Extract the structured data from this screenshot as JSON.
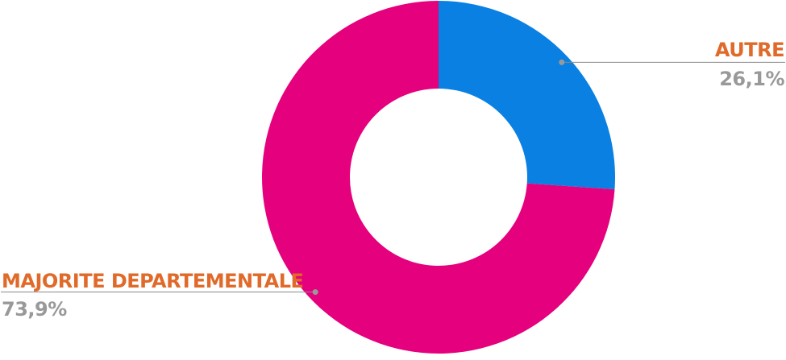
{
  "chart_data": {
    "type": "pie",
    "donut": true,
    "inner_radius_ratio": 0.5,
    "start_angle_deg": 0,
    "direction": "clockwise",
    "title": "",
    "legend": "none",
    "background_color": "#FFFFFF",
    "slices": [
      {
        "label": "AUTRE",
        "value": 26.1,
        "display_value": "26,1%",
        "color": "#0A80E2"
      },
      {
        "label": "MAJORITE DEPARTEMENTALE",
        "value": 73.9,
        "display_value": "73,9%",
        "color": "#E5007D"
      }
    ],
    "callout_label_color": "#E06A29",
    "callout_value_color": "#999999",
    "leader_line_color": "#8A8A8A",
    "leader_dot_color": "#999999"
  }
}
